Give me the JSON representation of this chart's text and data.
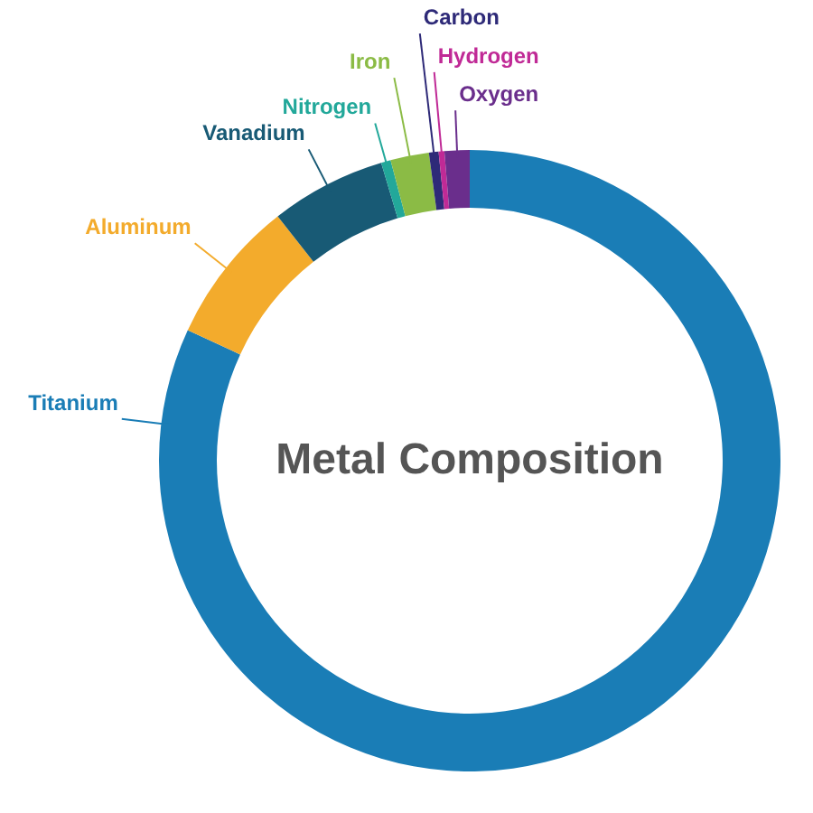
{
  "chart_data": {
    "type": "donut",
    "title": "Metal Composition",
    "categories": [
      "Titanium",
      "Aluminum",
      "Vanadium",
      "Nitrogen",
      "Iron",
      "Carbon",
      "Hydrogen",
      "Oxygen"
    ],
    "values": [
      81.9,
      7.5,
      6,
      0.5,
      2,
      0.5,
      0.3,
      1.3
    ],
    "colors": [
      "#1a7db6",
      "#f3ab2c",
      "#185a75",
      "#22a89a",
      "#8bbb45",
      "#2e2a78",
      "#c02a96",
      "#6a2e8c"
    ]
  }
}
